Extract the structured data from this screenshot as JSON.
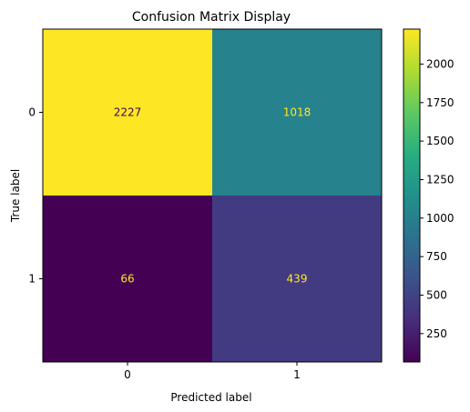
{
  "chart_data": {
    "type": "heatmap",
    "title": "Confusion Matrix Display",
    "xlabel": "Predicted label",
    "ylabel": "True label",
    "x_categories": [
      "0",
      "1"
    ],
    "y_categories": [
      "0",
      "1"
    ],
    "values": [
      [
        2227,
        1018
      ],
      [
        66,
        439
      ]
    ],
    "colormap": "viridis",
    "color_range": [
      66,
      2227
    ],
    "colorbar_ticks": [
      250,
      500,
      750,
      1000,
      1250,
      1500,
      1750,
      2000
    ],
    "text_color_light": "#fde725",
    "text_color_dark": "#440154"
  }
}
